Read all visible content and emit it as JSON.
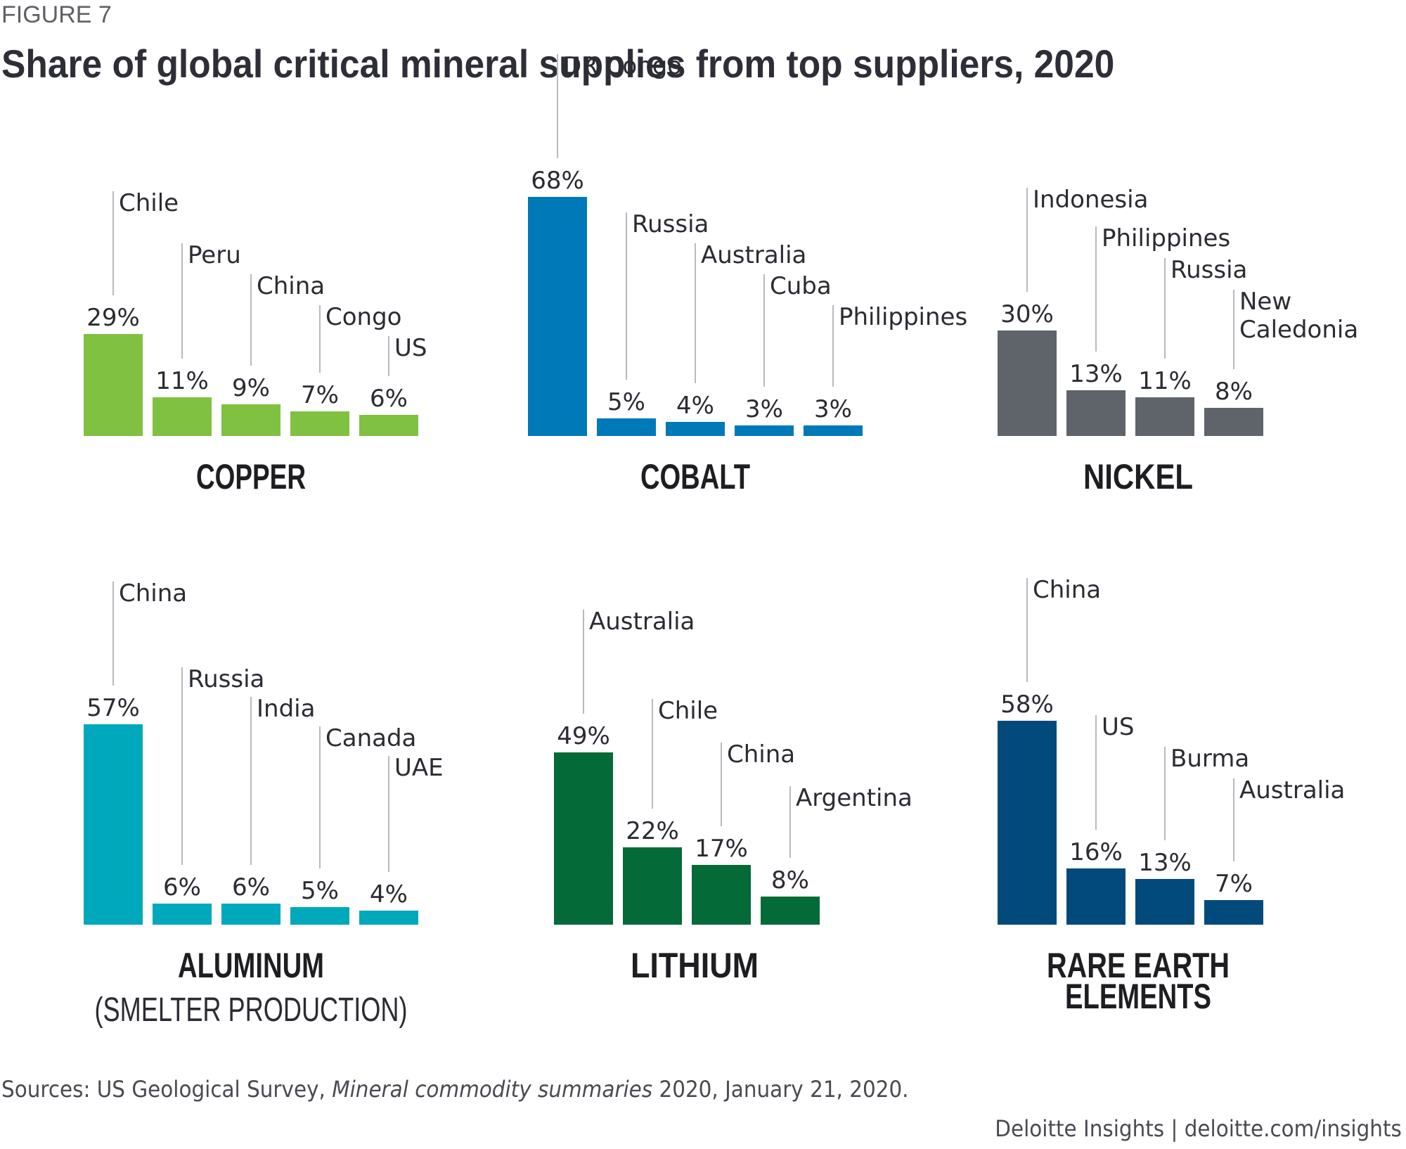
{
  "figure_label": "FIGURE 7",
  "title": "Share of global critical mineral supplies from top suppliers, 2020",
  "source": {
    "prefix": "Sources: US Geological Survey, ",
    "italic": "Mineral commodity summaries",
    "suffix": " 2020, January 21, 2020."
  },
  "credit": "Deloitte Insights | deloitte.com/insights",
  "chart_data": [
    {
      "type": "bar",
      "title": "COPPER",
      "subtitle": "",
      "color": "#80c141",
      "categories": [
        "Chile",
        "Peru",
        "China",
        "Congo",
        "US"
      ],
      "values": [
        29,
        11,
        9,
        7,
        6
      ],
      "value_labels": [
        "29%",
        "11%",
        "9%",
        "7%",
        "6%"
      ],
      "unit": "%"
    },
    {
      "type": "bar",
      "title": "COBALT",
      "subtitle": "",
      "color": "#0079b8",
      "categories": [
        "DR Congo",
        "Russia",
        "Australia",
        "Cuba",
        "Philippines"
      ],
      "values": [
        68,
        5,
        4,
        3,
        3
      ],
      "value_labels": [
        "68%",
        "5%",
        "4%",
        "3%",
        "3%"
      ],
      "unit": "%"
    },
    {
      "type": "bar",
      "title": "NICKEL",
      "subtitle": "",
      "color": "#5f636a",
      "categories": [
        "Indonesia",
        "Philippines",
        "Russia",
        "New Caledonia"
      ],
      "values": [
        30,
        13,
        11,
        8
      ],
      "value_labels": [
        "30%",
        "13%",
        "11%",
        "8%"
      ],
      "unit": "%"
    },
    {
      "type": "bar",
      "title": "ALUMINUM",
      "subtitle": "(SMELTER PRODUCTION)",
      "color": "#00a8bc",
      "categories": [
        "China",
        "Russia",
        "India",
        "Canada",
        "UAE"
      ],
      "values": [
        57,
        6,
        6,
        5,
        4
      ],
      "value_labels": [
        "57%",
        "6%",
        "6%",
        "5%",
        "4%"
      ],
      "unit": "%"
    },
    {
      "type": "bar",
      "title": "LITHIUM",
      "subtitle": "",
      "color": "#046a38",
      "categories": [
        "Australia",
        "Chile",
        "China",
        "Argentina"
      ],
      "values": [
        49,
        22,
        17,
        8
      ],
      "value_labels": [
        "49%",
        "22%",
        "17%",
        "8%"
      ],
      "unit": "%"
    },
    {
      "type": "bar",
      "title": "RARE EARTH ELEMENTS",
      "subtitle": "",
      "color": "#024a7c",
      "categories": [
        "China",
        "US",
        "Burma",
        "Australia"
      ],
      "values": [
        58,
        16,
        13,
        7
      ],
      "value_labels": [
        "58%",
        "16%",
        "13%",
        "7%"
      ],
      "unit": "%"
    }
  ]
}
